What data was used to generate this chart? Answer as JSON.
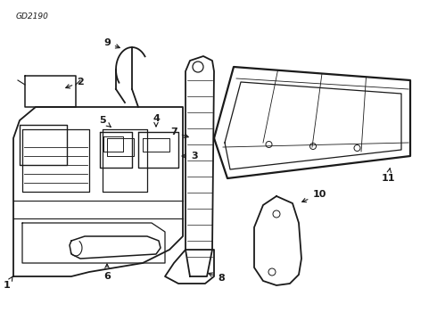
{
  "title": "GD2190",
  "bg_color": "#ffffff",
  "line_color": "#1a1a1a",
  "figsize": [
    4.9,
    3.6
  ],
  "dpi": 100
}
